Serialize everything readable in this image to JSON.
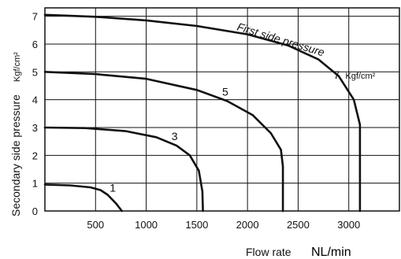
{
  "chart_data": {
    "type": "line",
    "xlabel": "Flow rate",
    "xunit": "NL/min",
    "ylabel": "Secondary side pressure",
    "yunit": "Kgf/cm²",
    "xlim": [
      0,
      3500
    ],
    "ylim": [
      0,
      7.3
    ],
    "xticks": [
      "500",
      "1000",
      "1500",
      "2000",
      "2500",
      "3000"
    ],
    "yticks": [
      "0",
      "1",
      "2",
      "3",
      "4",
      "5",
      "6",
      "7"
    ],
    "grid": true,
    "annotation": "First side pressure",
    "series": [
      {
        "name": "1",
        "points": [
          [
            0,
            0.95
          ],
          [
            250,
            0.92
          ],
          [
            450,
            0.85
          ],
          [
            550,
            0.75
          ],
          [
            620,
            0.58
          ],
          [
            700,
            0.28
          ],
          [
            760,
            0.0
          ]
        ]
      },
      {
        "name": "3",
        "points": [
          [
            0,
            3.0
          ],
          [
            400,
            2.98
          ],
          [
            800,
            2.87
          ],
          [
            1100,
            2.65
          ],
          [
            1300,
            2.35
          ],
          [
            1430,
            2.0
          ],
          [
            1520,
            1.45
          ],
          [
            1555,
            0.7
          ],
          [
            1560,
            0.0
          ]
        ]
      },
      {
        "name": "5",
        "points": [
          [
            0,
            5.0
          ],
          [
            500,
            4.92
          ],
          [
            1000,
            4.75
          ],
          [
            1500,
            4.35
          ],
          [
            1800,
            3.95
          ],
          [
            2050,
            3.45
          ],
          [
            2230,
            2.8
          ],
          [
            2330,
            2.2
          ],
          [
            2350,
            1.6
          ],
          [
            2350,
            0.0
          ]
        ]
      },
      {
        "name": "7",
        "points": [
          [
            0,
            7.05
          ],
          [
            500,
            6.98
          ],
          [
            1000,
            6.85
          ],
          [
            1500,
            6.65
          ],
          [
            2000,
            6.35
          ],
          [
            2400,
            5.95
          ],
          [
            2700,
            5.45
          ],
          [
            2900,
            4.85
          ],
          [
            3050,
            4.0
          ],
          [
            3110,
            3.1
          ],
          [
            3110,
            0.0
          ]
        ]
      }
    ],
    "series_labels": [
      {
        "text": "1",
        "x": 640,
        "y": 0.7
      },
      {
        "text": "3",
        "x": 1250,
        "y": 2.55
      },
      {
        "text": "5",
        "x": 1750,
        "y": 4.15
      },
      {
        "text": "7",
        "x": 2850,
        "y": 4.75,
        "unit": "Kgf/cm²"
      }
    ]
  }
}
